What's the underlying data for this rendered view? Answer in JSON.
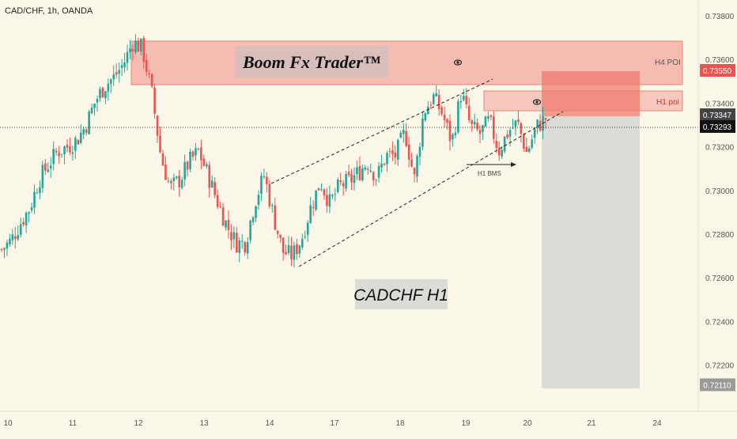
{
  "header": {
    "symbol_title": "CAD/CHF, 1h, OANDA"
  },
  "watermark": {
    "brand": "Boom Fx Trader™",
    "pair": "CADCHF H1"
  },
  "annotations": {
    "h4_zone_label": "H4 POI",
    "h1_zone_label": "H1 poi",
    "bms_label": "H1 BMS"
  },
  "price_tags": [
    {
      "text": "0.73550",
      "value": 0.7355,
      "kind": "red"
    },
    {
      "text": "0.73347",
      "value": 0.73347,
      "kind": "dark"
    },
    {
      "text": "0.73293",
      "value": 0.73293,
      "kind": "black"
    },
    {
      "text": "0.72110",
      "value": 0.7211,
      "kind": "grey"
    }
  ],
  "colors": {
    "bull": "#26a69a",
    "bear": "#ef5350",
    "zone": "#f3a39b",
    "zone_strong": "#ef7b6e",
    "stop_box": "#d8d8d4"
  },
  "chart_data": {
    "type": "candlestick",
    "title": "CAD/CHF, 1h, OANDA",
    "y_ticks": [
      0.738,
      0.736,
      0.734,
      0.732,
      0.73,
      0.728,
      0.726,
      0.724,
      0.722
    ],
    "y_tick_labels": [
      "0.73800",
      "0.73600",
      "0.73400",
      "0.73200",
      "0.73000",
      "0.72800",
      "0.72600",
      "0.72400",
      "0.72200"
    ],
    "ylim": [
      0.7197,
      0.7392
    ],
    "x_tick_labels": [
      "10",
      "11",
      "12",
      "13",
      "14",
      "17",
      "18",
      "19",
      "20",
      "21",
      "24"
    ],
    "zones": [
      {
        "label": "H4 POI",
        "low": 0.7349,
        "high": 0.737
      },
      {
        "label": "H1 poi",
        "low": 0.73365,
        "high": 0.73418
      }
    ],
    "position": {
      "entry": 0.73347,
      "stop": 0.7355,
      "target": 0.7211
    },
    "last_price": 0.73293,
    "trend_channel": {
      "upper_start": 0.7306,
      "upper_end": 0.7351,
      "lower_start": 0.7267,
      "lower_end": 0.7337
    },
    "bms_level": 0.73195,
    "series": [
      {
        "values": [
          0.7273,
          0.7277,
          0.7285,
          0.7292,
          0.7305,
          0.7312,
          0.7318,
          0.732,
          0.7323,
          0.733,
          0.7341,
          0.7348,
          0.7352,
          0.7358,
          0.7368,
          0.7365,
          0.7345,
          0.7315,
          0.7301,
          0.7305,
          0.7313,
          0.7318,
          0.7307,
          0.7295,
          0.7284,
          0.7276,
          0.7276,
          0.7295,
          0.7307,
          0.7288,
          0.7272,
          0.727,
          0.7278,
          0.7293,
          0.7304,
          0.7294,
          0.7302,
          0.7304,
          0.7308,
          0.7313,
          0.7306,
          0.7316,
          0.7316,
          0.7327,
          0.7305,
          0.7336,
          0.7343,
          0.7335,
          0.7322,
          0.7345,
          0.7329,
          0.7326,
          0.7332,
          0.7318,
          0.7327,
          0.7331,
          0.7317,
          0.7329,
          0.7333
        ]
      }
    ]
  }
}
